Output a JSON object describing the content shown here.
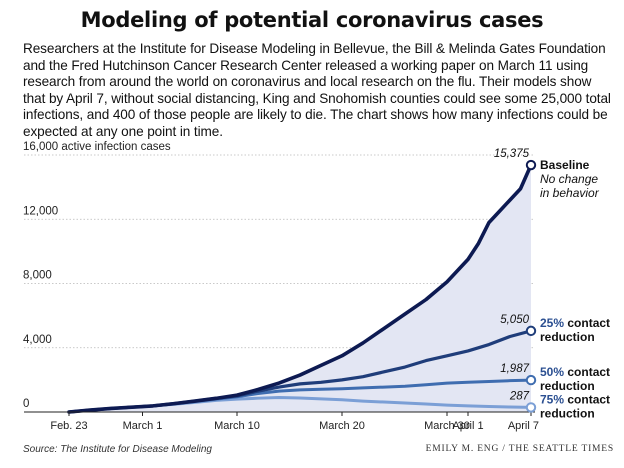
{
  "title": "Modeling of potential coronavirus cases",
  "intro": "Researchers at the Institute for Disease Modeling in Bellevue, the Bill & Melinda Gates Foundation and the Fred Hutchinson Cancer Research Center released a working paper on March 11 using research from around the world on coronavirus and local research on the flu. Their models show that by April 7, without social distancing, King and Snohomish counties could see some 25,000 total infections, and 400 of those people are likely to die. The chart shows how many infections could be expected at any one point in time.",
  "source": "Source: The Institute for Disease Modeling",
  "credit": "EMILY M. ENG / THE SEATTLE TIMES",
  "colors": {
    "baseline": "#0d1a52",
    "reduction25": "#1f3d7a",
    "reduction50": "#3f6db0",
    "reduction75": "#7b9fd6",
    "fill": "#e3e6f3",
    "grid": "#b8b8b8",
    "label_blue": "#2b4f91"
  },
  "chart_data": {
    "type": "line",
    "ylim": [
      0,
      16000
    ],
    "yticks": [
      0,
      4000,
      8000,
      12000,
      16000
    ],
    "ytick_labels": [
      "0",
      "4,000",
      "8,000",
      "12,000",
      "16,000 active infection cases"
    ],
    "xlim": [
      0,
      44
    ],
    "xticks": [
      {
        "day": 0,
        "label": "Feb. 23"
      },
      {
        "day": 7,
        "label": "March 1"
      },
      {
        "day": 16,
        "label": "March 10"
      },
      {
        "day": 26,
        "label": "March 20"
      },
      {
        "day": 36,
        "label": "March 30"
      },
      {
        "day": 38,
        "label": "April 1"
      },
      {
        "day": 44,
        "label": "April 7"
      }
    ],
    "series": [
      {
        "name": "Baseline",
        "key": "baseline",
        "label_main": "Baseline",
        "label_sub": [
          "No change",
          "in behavior"
        ],
        "end_label": "15,375",
        "x": [
          0,
          2,
          4,
          6,
          8,
          10,
          12,
          14,
          16,
          18,
          20,
          21,
          22,
          24,
          26,
          28,
          30,
          32,
          34,
          36,
          37,
          38,
          39,
          40,
          41,
          42,
          43,
          44
        ],
        "values": [
          0,
          120,
          220,
          300,
          380,
          520,
          680,
          850,
          1050,
          1400,
          1800,
          2050,
          2300,
          2900,
          3500,
          4300,
          5200,
          6100,
          7000,
          8100,
          8800,
          9500,
          10500,
          11800,
          12500,
          13200,
          13900,
          15375
        ]
      },
      {
        "name": "25% contact reduction",
        "key": "reduction25",
        "label_main": "25% contact",
        "label_sub2": "reduction",
        "end_label": "5,050",
        "x": [
          0,
          2,
          4,
          6,
          8,
          10,
          12,
          14,
          16,
          18,
          20,
          22,
          24,
          26,
          28,
          30,
          32,
          34,
          36,
          38,
          40,
          42,
          44
        ],
        "values": [
          0,
          120,
          220,
          300,
          380,
          520,
          680,
          850,
          1000,
          1300,
          1550,
          1750,
          1850,
          2000,
          2200,
          2500,
          2800,
          3200,
          3500,
          3800,
          4200,
          4700,
          5050
        ]
      },
      {
        "name": "50% contact reduction",
        "key": "reduction50",
        "label_main": "50% contact",
        "label_sub2": "reduction",
        "end_label": "1,987",
        "x": [
          0,
          2,
          4,
          6,
          8,
          10,
          12,
          14,
          16,
          18,
          20,
          22,
          24,
          26,
          28,
          30,
          32,
          34,
          36,
          38,
          40,
          42,
          44
        ],
        "values": [
          0,
          120,
          220,
          300,
          380,
          500,
          650,
          800,
          950,
          1150,
          1300,
          1380,
          1420,
          1450,
          1500,
          1550,
          1600,
          1700,
          1800,
          1850,
          1900,
          1950,
          1987
        ]
      },
      {
        "name": "75% contact reduction",
        "key": "reduction75",
        "label_main": "75% contact",
        "label_sub2": "reduction",
        "end_label": "287",
        "x": [
          0,
          2,
          4,
          6,
          8,
          10,
          12,
          14,
          16,
          18,
          20,
          22,
          24,
          26,
          28,
          30,
          32,
          34,
          36,
          38,
          40,
          42,
          44
        ],
        "values": [
          0,
          120,
          220,
          300,
          380,
          480,
          600,
          720,
          800,
          860,
          900,
          870,
          820,
          760,
          680,
          620,
          560,
          500,
          430,
          380,
          340,
          310,
          287
        ]
      }
    ]
  }
}
